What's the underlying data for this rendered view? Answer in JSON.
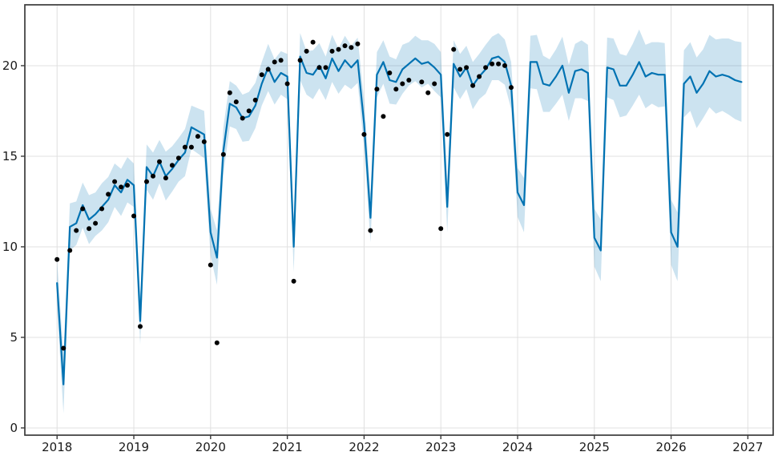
{
  "figure": {
    "background": "#ffffff",
    "title": "",
    "legend": "none"
  },
  "chart_data": {
    "type": "line",
    "description": "Prophet-style monthly time-series forecast: black observation dots (Jan 2018 - Dec 2023), blue fitted/forecast line with light-blue uncertainty band extending to Dec 2026. Sharp seasonal dip each February.",
    "x_start_year": 2018,
    "x_start_month": 1,
    "months_total": 108,
    "xlim_years": [
      2017.58,
      2027.33
    ],
    "ylim": [
      -0.4,
      23.36
    ],
    "grid": true,
    "x_ticks": [
      2018,
      2019,
      2020,
      2021,
      2022,
      2023,
      2024,
      2025,
      2026,
      2027
    ],
    "x_tick_labels": [
      "2018",
      "2019",
      "2020",
      "2021",
      "2022",
      "2023",
      "2024",
      "2025",
      "2026",
      "2027"
    ],
    "y_ticks": [
      0,
      5,
      10,
      15,
      20
    ],
    "y_tick_labels": [
      "0",
      "5",
      "10",
      "15",
      "20"
    ],
    "series": [
      {
        "name": "forecast-yhat",
        "color": "#0072B2",
        "line_width": 2.2,
        "values": [
          8.0,
          2.4,
          11.1,
          11.3,
          12.3,
          11.5,
          11.8,
          12.2,
          12.6,
          13.4,
          13.0,
          13.7,
          13.4,
          5.9,
          14.4,
          13.9,
          14.7,
          13.9,
          14.3,
          14.8,
          15.2,
          16.6,
          16.4,
          16.2,
          10.8,
          9.4,
          15.3,
          17.9,
          17.7,
          17.1,
          17.2,
          17.8,
          19.0,
          19.9,
          19.1,
          19.6,
          19.4,
          10.0,
          20.5,
          19.6,
          19.5,
          20.0,
          19.3,
          20.4,
          19.7,
          20.3,
          19.9,
          20.3,
          16.8,
          11.6,
          19.5,
          20.2,
          19.2,
          19.1,
          19.8,
          20.1,
          20.4,
          20.1,
          20.2,
          19.9,
          19.5,
          12.2,
          20.1,
          19.4,
          19.9,
          18.9,
          19.4,
          19.8,
          20.4,
          20.5,
          20.2,
          18.9,
          13.0,
          12.3,
          20.2,
          20.2,
          19.0,
          18.9,
          19.4,
          20.0,
          18.5,
          19.7,
          19.8,
          19.6,
          10.5,
          9.8,
          19.9,
          19.8,
          18.9,
          18.9,
          19.5,
          20.2,
          19.4,
          19.6,
          19.5,
          19.5,
          10.8,
          10.0,
          19.0,
          19.4,
          18.5,
          19.0,
          19.7,
          19.4,
          19.5,
          19.4,
          19.2,
          19.1
        ]
      },
      {
        "name": "observations",
        "color": "#000000",
        "marker_radius": 3,
        "values": [
          9.3,
          4.4,
          9.8,
          10.9,
          12.1,
          11.0,
          11.3,
          12.1,
          12.9,
          13.6,
          13.3,
          13.4,
          11.7,
          5.6,
          13.6,
          13.9,
          14.7,
          13.8,
          14.5,
          14.9,
          15.5,
          15.5,
          16.1,
          15.8,
          9.0,
          4.7,
          15.1,
          18.5,
          18.0,
          17.1,
          17.5,
          18.1,
          19.5,
          19.8,
          20.2,
          20.3,
          19.0,
          8.1,
          20.3,
          20.8,
          21.3,
          19.9,
          19.9,
          20.8,
          20.9,
          21.1,
          21.0,
          21.2,
          16.2,
          10.9,
          18.7,
          17.2,
          19.6,
          18.7,
          19.0,
          19.2,
          null,
          19.1,
          18.5,
          19.0,
          11.0,
          16.2,
          20.9,
          19.8,
          19.9,
          18.9,
          19.4,
          19.9,
          20.1,
          20.1,
          20.0,
          18.8
        ]
      }
    ],
    "band": {
      "name": "uncertainty-interval",
      "color": "#0072B2",
      "opacity": 0.2,
      "half_width": [
        1.3,
        1.6,
        1.3,
        1.2,
        1.25,
        1.35,
        1.2,
        1.3,
        1.25,
        1.2,
        1.3,
        1.25,
        1.2,
        1.3,
        1.25,
        1.3,
        1.2,
        1.35,
        1.25,
        1.2,
        1.3,
        1.2,
        1.25,
        1.3,
        1.3,
        1.5,
        1.3,
        1.25,
        1.2,
        1.3,
        1.35,
        1.25,
        1.2,
        1.3,
        1.25,
        1.2,
        1.25,
        1.4,
        1.3,
        1.2,
        1.35,
        1.25,
        1.2,
        1.3,
        1.25,
        1.35,
        1.2,
        1.25,
        1.3,
        1.35,
        1.25,
        1.2,
        1.3,
        1.25,
        1.35,
        1.2,
        1.25,
        1.3,
        1.2,
        1.3,
        1.25,
        1.4,
        1.3,
        1.25,
        1.2,
        1.3,
        1.25,
        1.35,
        1.2,
        1.3,
        1.25,
        1.3,
        1.35,
        1.5,
        1.45,
        1.5,
        1.55,
        1.45,
        1.5,
        1.6,
        1.55,
        1.5,
        1.6,
        1.55,
        1.6,
        1.7,
        1.65,
        1.7,
        1.75,
        1.65,
        1.7,
        1.8,
        1.75,
        1.7,
        1.8,
        1.75,
        1.8,
        1.9,
        1.85,
        1.9,
        1.95,
        1.9,
        2.0,
        2.05,
        2.0,
        2.1,
        2.15,
        2.2
      ]
    },
    "style": {
      "grid_color": "#e0e0e0",
      "spine_color": "#3a3a3a",
      "tick_color": "#3a3a3a",
      "tick_label_color": "#1a1a1a",
      "tick_label_size": 15
    }
  }
}
